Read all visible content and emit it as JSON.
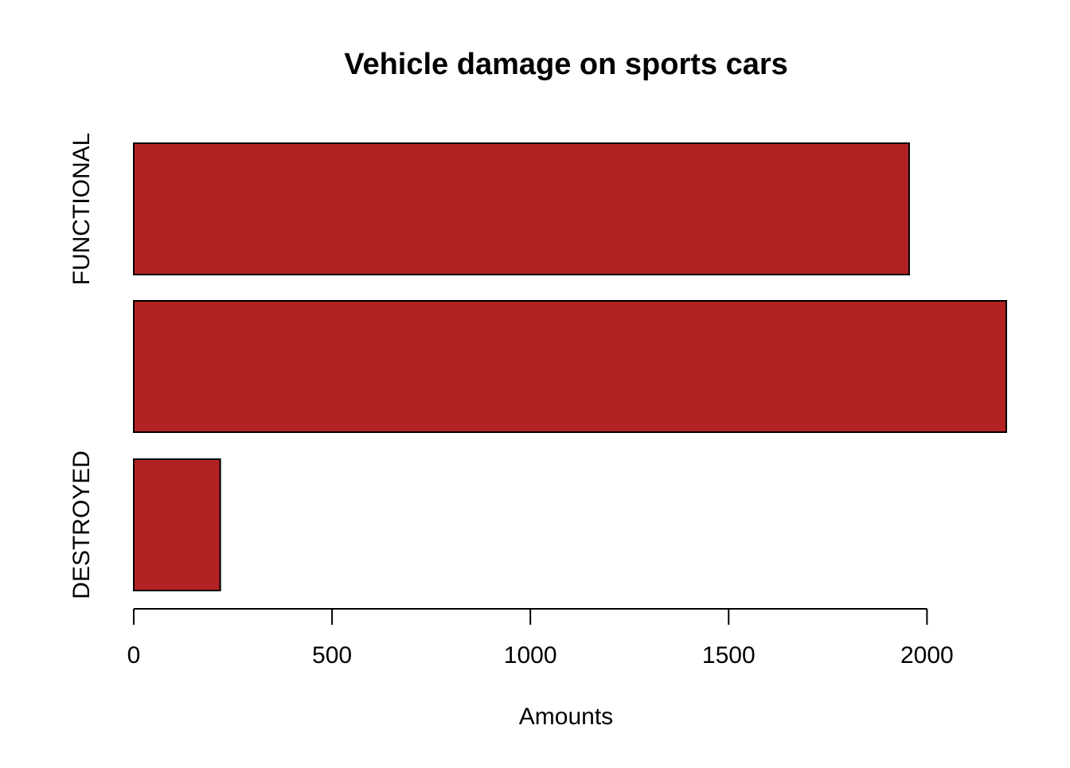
{
  "chart_data": {
    "type": "bar",
    "orientation": "horizontal",
    "title": "Vehicle damage on sports cars",
    "xlabel": "Amounts",
    "ylabel": "",
    "categories": [
      "DESTROYED",
      "",
      "FUNCTIONAL"
    ],
    "values": [
      218,
      2200,
      1955
    ],
    "xlim": [
      0,
      2200
    ],
    "x_ticks": [
      "0",
      "500",
      "1000",
      "1500",
      "2000"
    ],
    "x_tick_values": [
      0,
      500,
      1000,
      1500,
      2000
    ],
    "bar_color": "#b22222",
    "bar_edge_color": "#000000",
    "grid": false,
    "legend": "none"
  }
}
